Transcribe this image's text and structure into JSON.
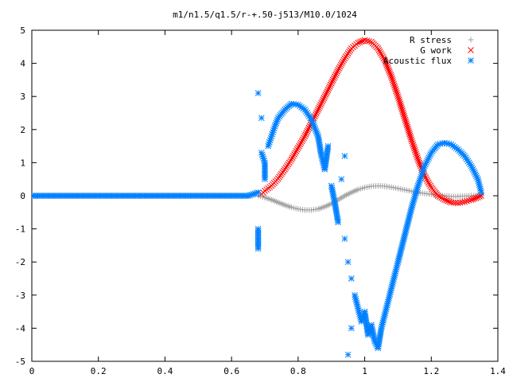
{
  "chart_data": {
    "type": "scatter",
    "title": "m1/n1.5/q1.5/r-+.50-j513/M10.0/1024",
    "xlim": [
      0,
      1.4
    ],
    "ylim": [
      -5,
      5
    ],
    "x_ticks": [
      "0",
      "0.2",
      "0.4",
      "0.6",
      "0.8",
      "1",
      "1.2",
      "1.4"
    ],
    "y_ticks": [
      "-5",
      "-4",
      "-3",
      "-2",
      "-1",
      "0",
      "1",
      "2",
      "3",
      "4",
      "5"
    ],
    "grid": false,
    "legend_position": "top-right",
    "series": [
      {
        "name": "R stress",
        "marker": "plus",
        "color": "#a0a0a0",
        "points": [
          [
            0.68,
            0.0
          ],
          [
            0.7,
            -0.05
          ],
          [
            0.72,
            -0.12
          ],
          [
            0.74,
            -0.2
          ],
          [
            0.76,
            -0.28
          ],
          [
            0.78,
            -0.35
          ],
          [
            0.8,
            -0.4
          ],
          [
            0.82,
            -0.43
          ],
          [
            0.84,
            -0.43
          ],
          [
            0.86,
            -0.4
          ],
          [
            0.88,
            -0.33
          ],
          [
            0.9,
            -0.24
          ],
          [
            0.92,
            -0.12
          ],
          [
            0.94,
            0.0
          ],
          [
            0.96,
            0.1
          ],
          [
            0.98,
            0.19
          ],
          [
            1.0,
            0.25
          ],
          [
            1.02,
            0.29
          ],
          [
            1.04,
            0.3
          ],
          [
            1.06,
            0.29
          ],
          [
            1.08,
            0.26
          ],
          [
            1.1,
            0.22
          ],
          [
            1.12,
            0.18
          ],
          [
            1.14,
            0.14
          ],
          [
            1.16,
            0.1
          ],
          [
            1.18,
            0.07
          ],
          [
            1.2,
            0.04
          ],
          [
            1.22,
            0.02
          ],
          [
            1.24,
            0.0
          ],
          [
            1.26,
            -0.02
          ],
          [
            1.28,
            -0.02
          ],
          [
            1.3,
            -0.01
          ],
          [
            1.32,
            0.0
          ],
          [
            1.34,
            0.02
          ],
          [
            1.35,
            0.0
          ]
        ]
      },
      {
        "name": "G work",
        "marker": "cross",
        "color": "#ff0000",
        "points": [
          [
            0.69,
            0.05
          ],
          [
            0.7,
            0.15
          ],
          [
            0.72,
            0.3
          ],
          [
            0.74,
            0.52
          ],
          [
            0.76,
            0.8
          ],
          [
            0.78,
            1.1
          ],
          [
            0.8,
            1.45
          ],
          [
            0.82,
            1.8
          ],
          [
            0.84,
            2.2
          ],
          [
            0.86,
            2.6
          ],
          [
            0.88,
            3.0
          ],
          [
            0.9,
            3.4
          ],
          [
            0.92,
            3.8
          ],
          [
            0.94,
            4.15
          ],
          [
            0.96,
            4.45
          ],
          [
            0.98,
            4.62
          ],
          [
            1.0,
            4.7
          ],
          [
            1.02,
            4.65
          ],
          [
            1.04,
            4.45
          ],
          [
            1.06,
            4.1
          ],
          [
            1.08,
            3.6
          ],
          [
            1.1,
            3.0
          ],
          [
            1.12,
            2.35
          ],
          [
            1.14,
            1.7
          ],
          [
            1.16,
            1.1
          ],
          [
            1.18,
            0.6
          ],
          [
            1.2,
            0.25
          ],
          [
            1.22,
            0.0
          ],
          [
            1.24,
            -0.12
          ],
          [
            1.26,
            -0.2
          ],
          [
            1.28,
            -0.22
          ],
          [
            1.3,
            -0.18
          ],
          [
            1.32,
            -0.12
          ],
          [
            1.34,
            -0.05
          ],
          [
            1.35,
            0.0
          ]
        ]
      },
      {
        "name": "Acoustic flux",
        "marker": "star",
        "color": "#0080ff",
        "points": [
          [
            0.0,
            0.0
          ],
          [
            0.05,
            0.0
          ],
          [
            0.1,
            0.0
          ],
          [
            0.15,
            0.0
          ],
          [
            0.2,
            0.0
          ],
          [
            0.25,
            0.0
          ],
          [
            0.3,
            0.0
          ],
          [
            0.35,
            0.0
          ],
          [
            0.4,
            0.0
          ],
          [
            0.45,
            0.0
          ],
          [
            0.5,
            0.0
          ],
          [
            0.55,
            0.0
          ],
          [
            0.6,
            0.0
          ],
          [
            0.65,
            0.0
          ],
          [
            0.68,
            0.1
          ],
          [
            0.68,
            3.1
          ],
          [
            0.68,
            -1.0
          ],
          [
            0.68,
            -1.6
          ],
          [
            0.69,
            2.35
          ],
          [
            0.69,
            1.3
          ],
          [
            0.7,
            1.0
          ],
          [
            0.7,
            0.5
          ],
          [
            0.71,
            1.5
          ],
          [
            0.72,
            1.8
          ],
          [
            0.73,
            2.1
          ],
          [
            0.74,
            2.35
          ],
          [
            0.76,
            2.6
          ],
          [
            0.78,
            2.78
          ],
          [
            0.8,
            2.75
          ],
          [
            0.82,
            2.6
          ],
          [
            0.84,
            2.3
          ],
          [
            0.86,
            1.8
          ],
          [
            0.87,
            1.2
          ],
          [
            0.88,
            0.8
          ],
          [
            0.89,
            1.5
          ],
          [
            0.9,
            0.3
          ],
          [
            0.91,
            -0.2
          ],
          [
            0.92,
            -0.8
          ],
          [
            0.93,
            0.5
          ],
          [
            0.94,
            -1.3
          ],
          [
            0.94,
            1.2
          ],
          [
            0.95,
            -2.0
          ],
          [
            0.95,
            -4.8
          ],
          [
            0.96,
            -2.5
          ],
          [
            0.96,
            -4.0
          ],
          [
            0.97,
            -3.0
          ],
          [
            0.98,
            -3.4
          ],
          [
            0.99,
            -3.8
          ],
          [
            1.0,
            -3.5
          ],
          [
            1.01,
            -4.2
          ],
          [
            1.02,
            -3.9
          ],
          [
            1.03,
            -4.4
          ],
          [
            1.04,
            -4.6
          ],
          [
            1.05,
            -4.0
          ],
          [
            1.06,
            -3.6
          ],
          [
            1.07,
            -3.2
          ],
          [
            1.08,
            -2.8
          ],
          [
            1.09,
            -2.4
          ],
          [
            1.1,
            -2.0
          ],
          [
            1.12,
            -1.2
          ],
          [
            1.14,
            -0.4
          ],
          [
            1.16,
            0.3
          ],
          [
            1.18,
            0.9
          ],
          [
            1.2,
            1.3
          ],
          [
            1.22,
            1.55
          ],
          [
            1.24,
            1.6
          ],
          [
            1.26,
            1.55
          ],
          [
            1.28,
            1.4
          ],
          [
            1.3,
            1.2
          ],
          [
            1.32,
            0.9
          ],
          [
            1.34,
            0.5
          ],
          [
            1.35,
            0.1
          ]
        ]
      }
    ]
  }
}
